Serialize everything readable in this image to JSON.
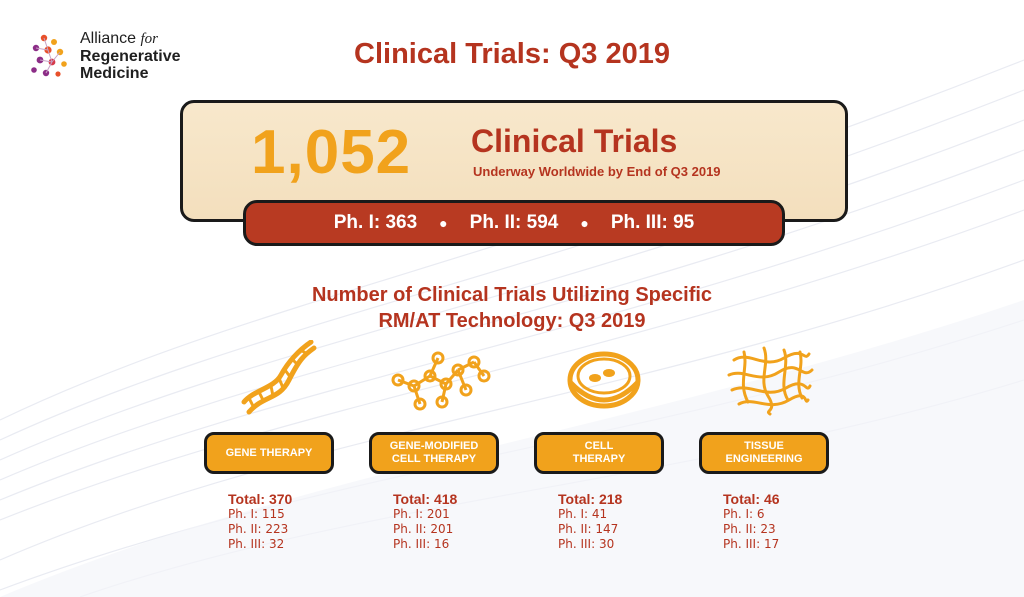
{
  "logo": {
    "line1": "Alliance",
    "line1_for": "for",
    "line2": "Regenerative",
    "line3": "Medicine"
  },
  "title": "Clinical Trials: Q3 2019",
  "summary": {
    "total": "1,052",
    "label": "Clinical Trials",
    "subtitle": "Underway Worldwide by End of Q3 2019",
    "phase1": "Ph. I: 363",
    "phase2": "Ph. II: 594",
    "phase3": "Ph. III: 95"
  },
  "section_title_line1": "Number of Clinical Trials Utilizing Specific",
  "section_title_line2": "RM/AT Technology: Q3 2019",
  "categories": [
    {
      "label": "GENE THERAPY",
      "icon": "dna-icon",
      "total": "Total: 370",
      "ph1": "Ph. I: 115",
      "ph2": "Ph. II: 223",
      "ph3": "Ph. III: 32"
    },
    {
      "label_line1": "GENE-MODIFIED",
      "label_line2": "CELL THERAPY",
      "icon": "molecule-icon",
      "total": "Total: 418",
      "ph1": "Ph. I: 201",
      "ph2": "Ph. II: 201",
      "ph3": "Ph. III: 16"
    },
    {
      "label_line1": "CELL",
      "label_line2": "THERAPY",
      "icon": "petri-dish-icon",
      "total": "Total: 218",
      "ph1": "Ph. I: 41",
      "ph2": "Ph. II: 147",
      "ph3": "Ph. III: 30"
    },
    {
      "label_line1": "TISSUE",
      "label_line2": "ENGINEERING",
      "icon": "tissue-fibers-icon",
      "total": "Total: 46",
      "ph1": "Ph. I: 6",
      "ph2": "Ph. II: 23",
      "ph3": "Ph. III: 17"
    }
  ],
  "colors": {
    "accent_red": "#b5341f",
    "accent_orange": "#f1a21c",
    "box_fill": "#f8e8cc"
  }
}
